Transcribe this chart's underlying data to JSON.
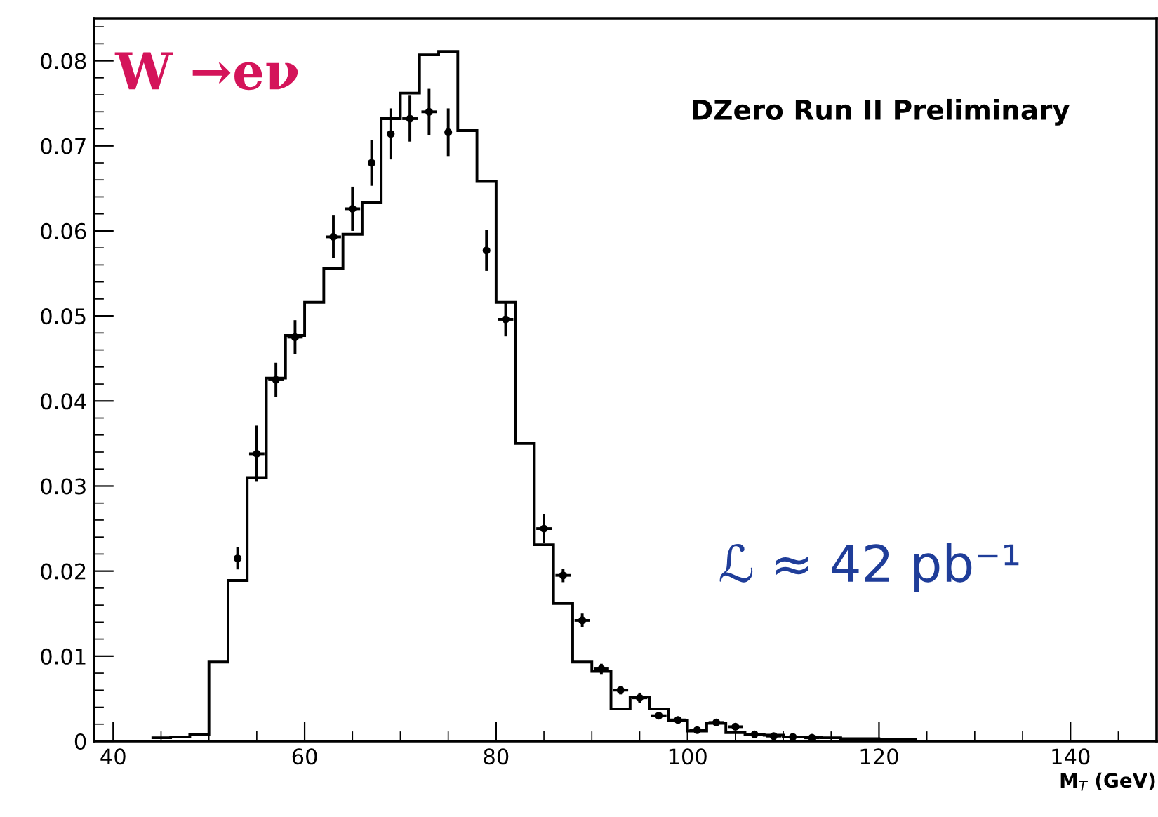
{
  "chart_data": {
    "type": "histogram",
    "xlabel": "M$_{T}$ (GeV)",
    "annotations": [
      "W →eν",
      "DZero Run II Preliminary",
      "ℒ ≈ 42 pb⁻¹"
    ],
    "xlim": [
      38,
      149
    ],
    "xticks": [
      40,
      60,
      80,
      100,
      120,
      140
    ],
    "ylim": [
      0,
      0.085
    ],
    "yticks": [
      0,
      0.01,
      0.02,
      0.03,
      0.04,
      0.05,
      0.06,
      0.07,
      0.08
    ],
    "grid": false,
    "legend": false,
    "series": [
      {
        "color": "#000000",
        "bins": [
          44,
          46,
          48,
          50,
          52,
          54,
          56,
          58,
          60,
          62,
          64,
          66,
          68,
          70,
          72,
          74,
          76,
          78,
          80,
          82,
          84,
          86,
          88,
          90,
          92,
          94,
          96,
          98,
          100,
          102,
          104,
          106,
          108,
          110,
          112,
          114,
          116,
          118,
          120,
          122,
          124
        ],
        "values": [
          0.0004,
          0.0005,
          0.0008,
          0.0093,
          0.0189,
          0.031,
          0.0427,
          0.0477,
          0.0516,
          0.0556,
          0.0596,
          0.0633,
          0.0732,
          0.0762,
          0.0807,
          0.0811,
          0.0718,
          0.0658,
          0.0516,
          0.035,
          0.0231,
          0.0162,
          0.0093,
          0.0082,
          0.0038,
          0.0052,
          0.0038,
          0.0024,
          0.0012,
          0.0021,
          0.001,
          0.0008,
          0.0007,
          0.0005,
          0.0005,
          0.0004,
          0.0003,
          0.0003,
          0.0002,
          0.0002
        ]
      },
      {
        "type": "scatter",
        "color": "#000000",
        "marker": "circle",
        "x": [
          53,
          55,
          57,
          59,
          63,
          65,
          67,
          69,
          71,
          73,
          75,
          79,
          81,
          85,
          87,
          89,
          91,
          93,
          95,
          97,
          99,
          101,
          103,
          105,
          107,
          109,
          111,
          113
        ],
        "values": [
          0.0215,
          0.0338,
          0.0425,
          0.0475,
          0.0593,
          0.0626,
          0.068,
          0.0714,
          0.0732,
          0.074,
          0.0716,
          0.0577,
          0.0496,
          0.025,
          0.0195,
          0.0142,
          0.0085,
          0.006,
          0.0051,
          0.003,
          0.0025,
          0.0013,
          0.0022,
          0.0017,
          0.0008,
          0.0006,
          0.0005,
          0.0004
        ],
        "errors": [
          0.0013,
          0.0033,
          0.002,
          0.002,
          0.0025,
          0.0026,
          0.0027,
          0.003,
          0.0027,
          0.0027,
          0.0028,
          0.0024,
          0.002,
          0.0017,
          0.0008,
          0.0008,
          0.0006,
          0.0005,
          0.0006,
          0.0004,
          0.0004,
          0.0003,
          0.0004,
          0.0003,
          0.0003,
          0.0003,
          0.0003,
          0.0003
        ],
        "xerrors": [
          null,
          0.8,
          0.8,
          0.8,
          0.8,
          0.8,
          null,
          null,
          0.8,
          0.8,
          null,
          null,
          0.8,
          0.8,
          0.8,
          0.8,
          0.8,
          0.8,
          0.8,
          0.8,
          0.8,
          0.8,
          0.8,
          0.8,
          0.8,
          0.8,
          0.8,
          0.8
        ]
      }
    ]
  }
}
